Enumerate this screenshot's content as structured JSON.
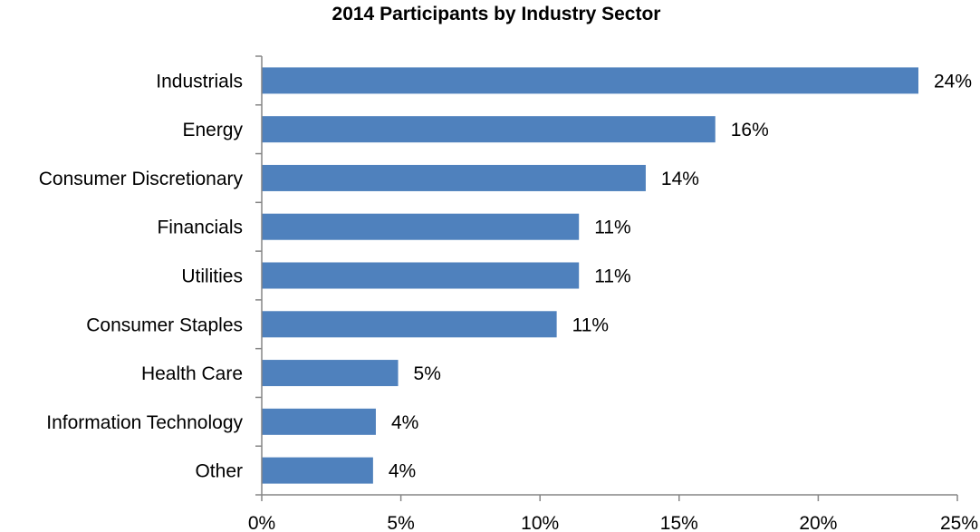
{
  "chart_data": {
    "type": "bar",
    "orientation": "horizontal",
    "title": "2014 Participants by Industry Sector",
    "xlabel": "",
    "ylabel": "",
    "categories": [
      "Industrials",
      "Energy",
      "Consumer Discretionary",
      "Financials",
      "Utilities",
      "Consumer Staples",
      "Health Care",
      "Information Technology",
      "Other"
    ],
    "values": [
      23.6,
      16.3,
      13.8,
      11.4,
      11.4,
      10.6,
      4.9,
      4.1,
      4.0
    ],
    "data_labels": [
      "24%",
      "16%",
      "14%",
      "11%",
      "11%",
      "11%",
      "5%",
      "4%",
      "4%"
    ],
    "xlim": [
      0,
      25
    ],
    "x_ticks": [
      0,
      5,
      10,
      15,
      20,
      25
    ],
    "x_tick_labels": [
      "0%",
      "5%",
      "10%",
      "15%",
      "20%",
      "25%"
    ],
    "grid": false,
    "legend": "none",
    "bar_color": "#4F81BD",
    "axis_color": "#868686"
  }
}
